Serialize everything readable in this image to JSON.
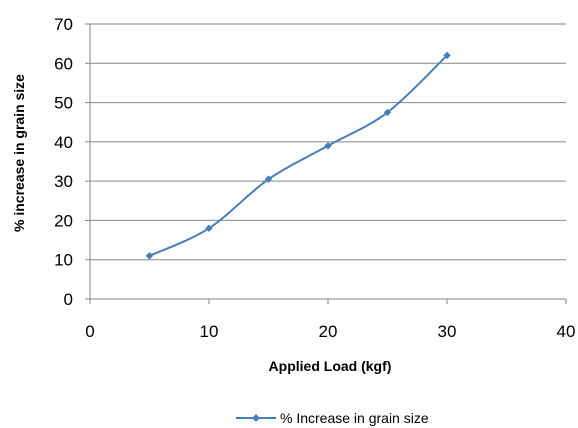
{
  "chart_data": {
    "type": "line",
    "title": "",
    "xlabel": "Applied Load (kgf)",
    "ylabel": "% increase in grain size",
    "xlim": [
      0,
      40
    ],
    "ylim": [
      0,
      70
    ],
    "xticks": [
      0,
      10,
      20,
      30,
      40
    ],
    "yticks": [
      0,
      10,
      20,
      30,
      40,
      50,
      60,
      70
    ],
    "grid": "horizontal",
    "legend_position": "bottom",
    "colors": {
      "series": "#4a7ebb",
      "grid": "#868686",
      "axis": "#868686"
    },
    "series": [
      {
        "name": "% Increase in grain size",
        "marker": "diamond",
        "smooth": true,
        "x": [
          5,
          10,
          15,
          20,
          25,
          30
        ],
        "y": [
          11,
          18,
          30.5,
          39,
          47.5,
          62
        ]
      }
    ]
  }
}
